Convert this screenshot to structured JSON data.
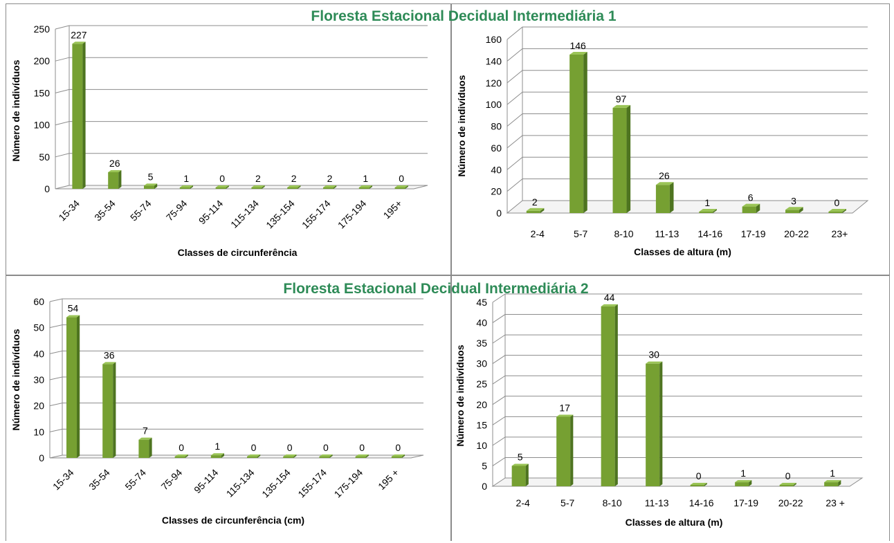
{
  "groups": [
    {
      "title": "Floresta Estacional Decidual Intermediária 1"
    },
    {
      "title": "Floresta Estacional Decidual Intermediária 2"
    }
  ],
  "colors": {
    "bar_front": "#76a032",
    "bar_side": "#4e7420",
    "bar_top": "#9ac456",
    "grid": "#8c8c8c",
    "title": "#2e8b57"
  },
  "chart_data": [
    {
      "type": "bar",
      "title": "",
      "xlabel": "Classes de circunferência",
      "ylabel": "Número de indivíduos",
      "categories": [
        "15-34",
        "35-54",
        "55-74",
        "75-94",
        "95-114",
        "115-134",
        "135-154",
        "155-174",
        "175-194",
        "195+"
      ],
      "values": [
        227,
        26,
        5,
        1,
        0,
        2,
        2,
        2,
        1,
        0
      ],
      "ylim": [
        0,
        250
      ],
      "yticks": [
        0,
        50,
        100,
        150,
        200,
        250
      ],
      "grid": true,
      "tick_rotation": "diagonal"
    },
    {
      "type": "bar",
      "title": "",
      "xlabel": "Classes de altura (m)",
      "ylabel": "Número de indivíduos",
      "categories": [
        "2-4",
        "5-7",
        "8-10",
        "11-13",
        "14-16",
        "17-19",
        "20-22",
        "23+"
      ],
      "values": [
        2,
        146,
        97,
        26,
        1,
        6,
        3,
        0
      ],
      "ylim": [
        0,
        160
      ],
      "yticks": [
        0,
        20,
        40,
        60,
        80,
        100,
        120,
        140,
        160
      ],
      "grid": true,
      "tick_rotation": "horizontal"
    },
    {
      "type": "bar",
      "title": "",
      "xlabel": "Classes de circunferência (cm)",
      "ylabel": "Número de indivíduos",
      "categories": [
        "15-34",
        "35-54",
        "55-74",
        "75-94",
        "95-114",
        "115-134",
        "135-154",
        "155-174",
        "175-194",
        "195 +"
      ],
      "values": [
        54,
        36,
        7,
        0,
        1,
        0,
        0,
        0,
        0,
        0
      ],
      "ylim": [
        0,
        60
      ],
      "yticks": [
        0,
        10,
        20,
        30,
        40,
        50,
        60
      ],
      "grid": true,
      "tick_rotation": "diagonal"
    },
    {
      "type": "bar",
      "title": "",
      "xlabel": "Classes de altura (m)",
      "ylabel": "Número de indivíduos",
      "categories": [
        "2-4",
        "5-7",
        "8-10",
        "11-13",
        "14-16",
        "17-19",
        "20-22",
        "23 +"
      ],
      "values": [
        5,
        17,
        44,
        30,
        0,
        1,
        0,
        1
      ],
      "ylim": [
        0,
        45
      ],
      "yticks": [
        0,
        5,
        10,
        15,
        20,
        25,
        30,
        35,
        40,
        45
      ],
      "grid": true,
      "tick_rotation": "horizontal"
    }
  ]
}
